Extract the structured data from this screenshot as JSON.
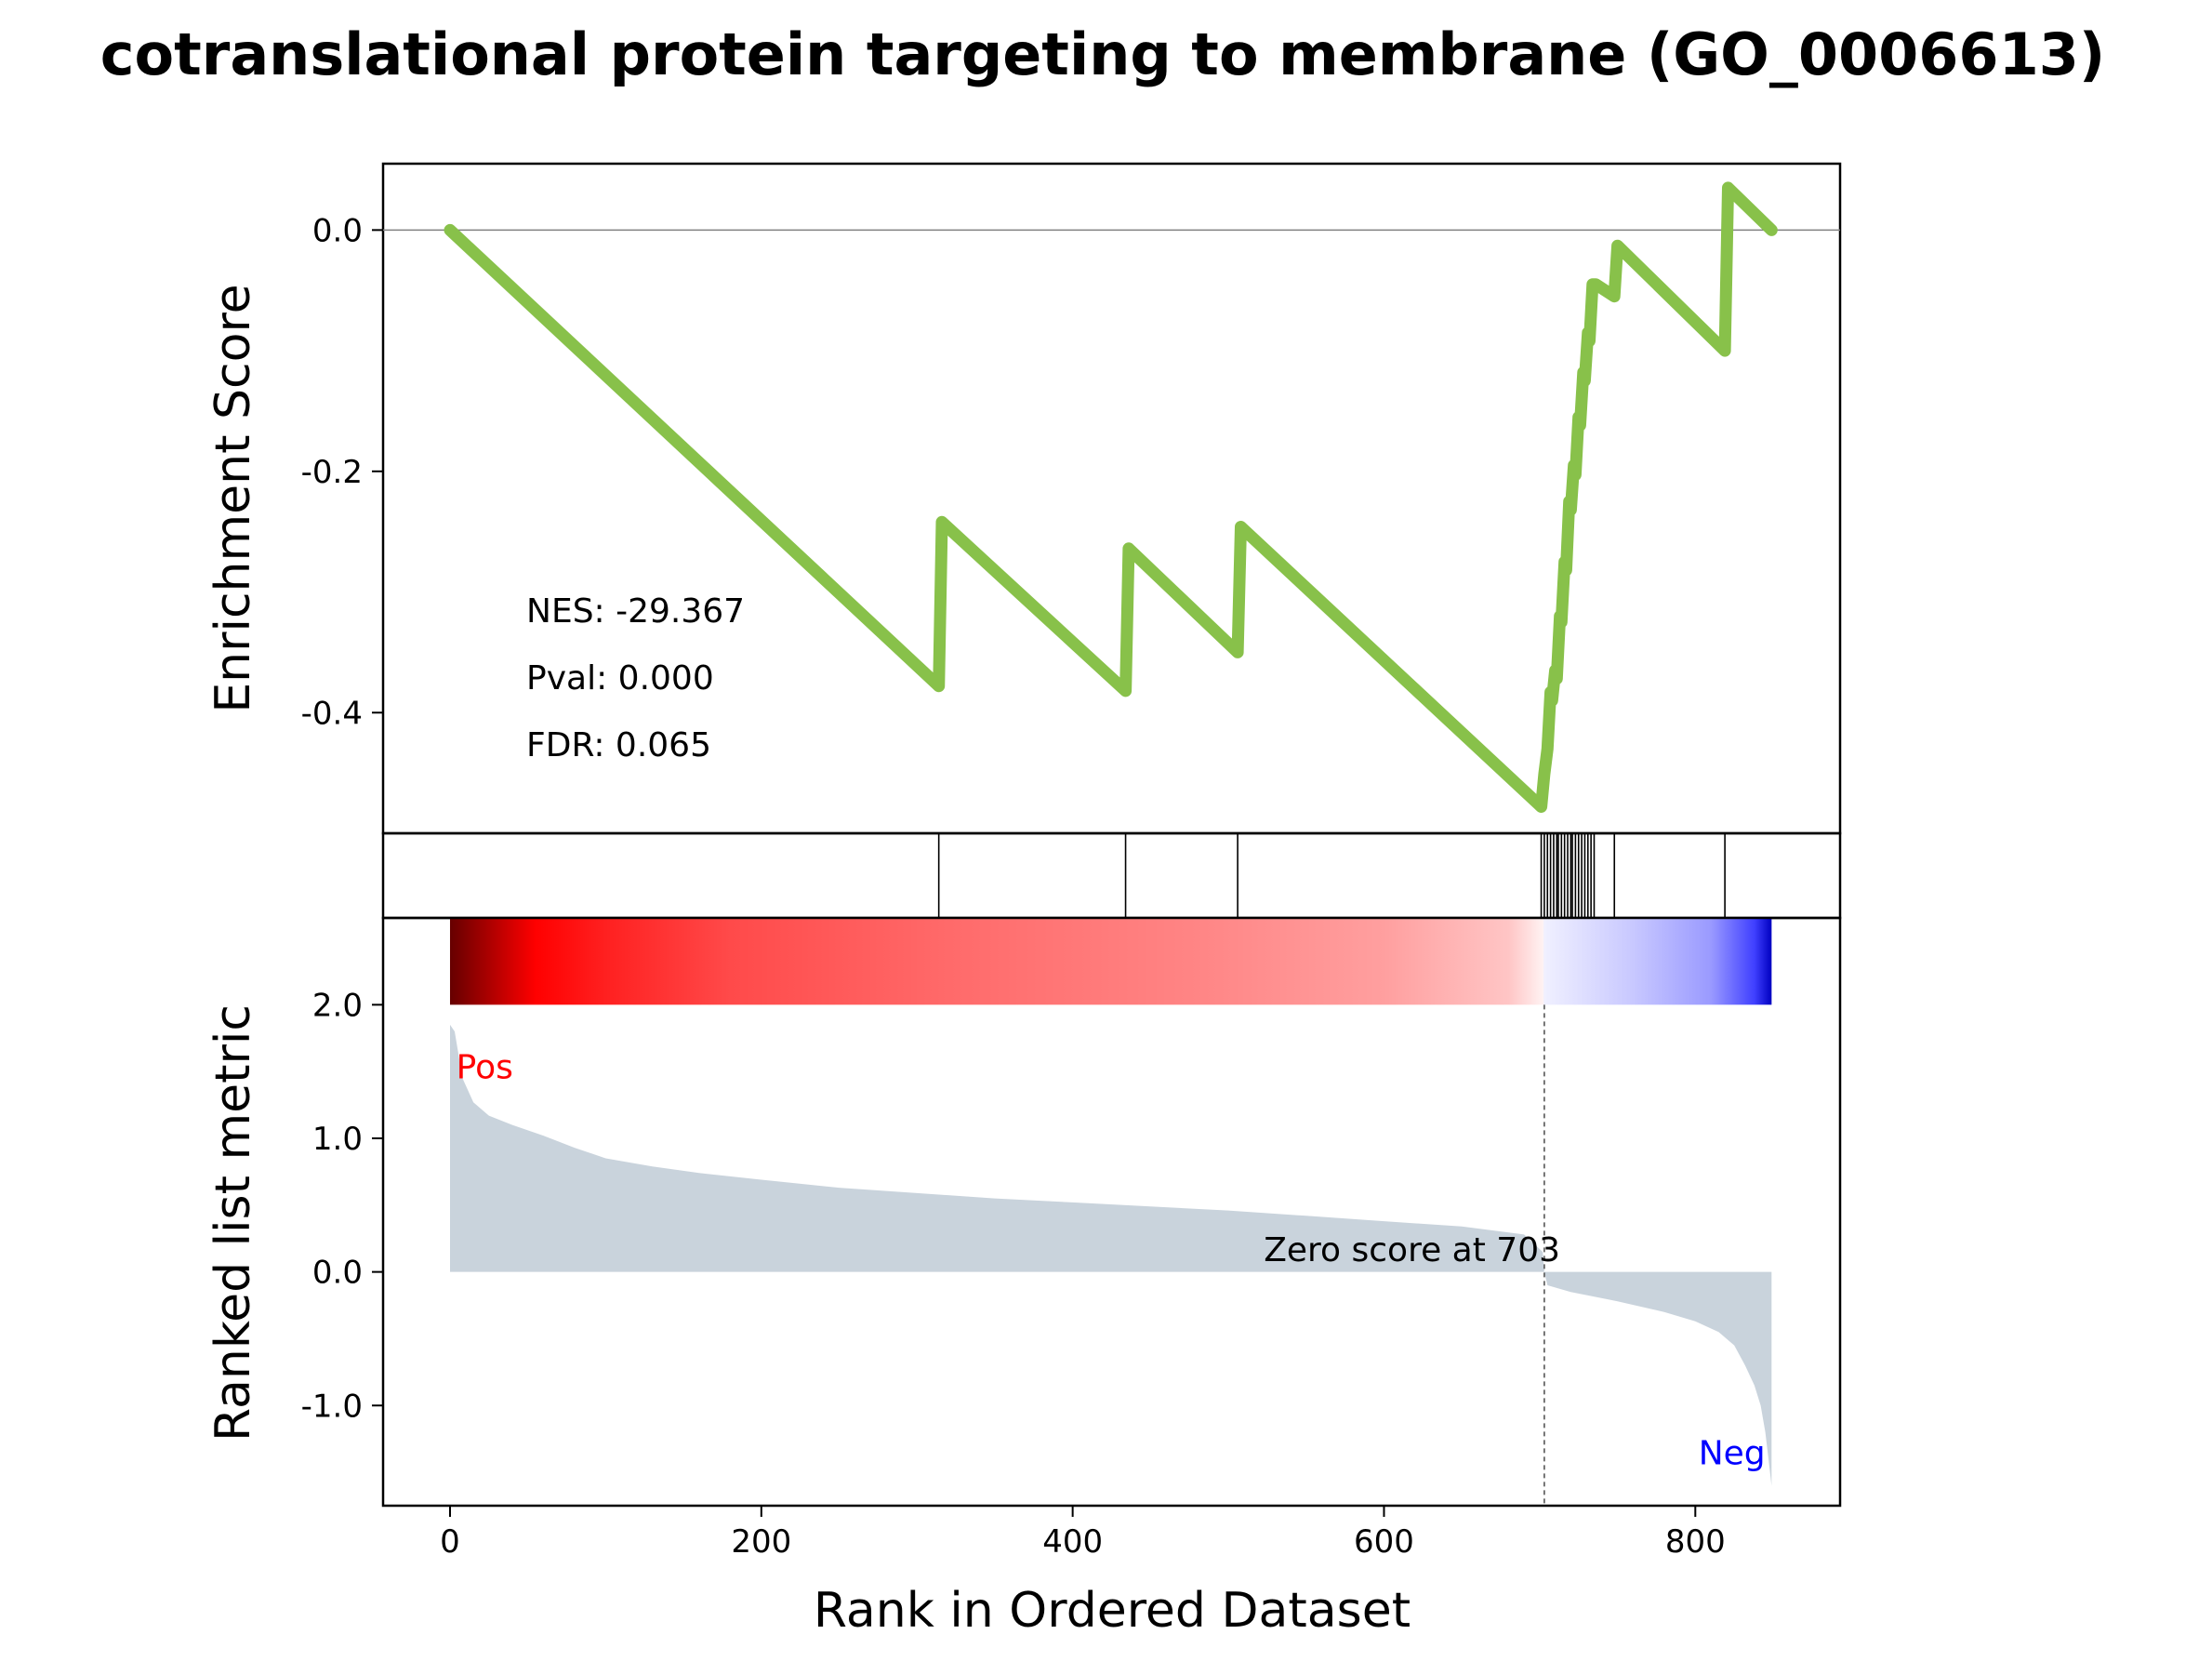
{
  "chart_data": {
    "type": "gsea_enrichment_plot",
    "title": "cotranslational protein targeting to membrane (GO_0006613)",
    "xlabel": "Rank in Ordered Dataset",
    "xlim": [
      -43,
      893
    ],
    "x_ticks": [
      0,
      200,
      400,
      600,
      800
    ],
    "x_tick_labels": [
      "0",
      "200",
      "400",
      "600",
      "800"
    ],
    "colors": {
      "es_line": "#88c14a",
      "metric_fill": "#c9d3dc",
      "pos_label": "#ff0000",
      "neg_label": "#0000ff",
      "baseline": "#808080",
      "zero_line": "#555555"
    },
    "enrichment_panel": {
      "ylabel": "Enrichment Score",
      "ylim": [
        -0.5,
        0.055
      ],
      "y_ticks": [
        0.0,
        -0.2,
        -0.4
      ],
      "y_tick_labels": [
        "0.0",
        "-0.2",
        "-0.4"
      ],
      "baseline_y": 0.0,
      "curve": {
        "x": [
          0,
          314,
          316,
          434,
          436,
          506,
          508,
          701,
          703,
          705,
          707,
          708,
          710,
          711,
          713,
          714,
          716,
          717,
          719,
          720,
          722,
          723,
          725,
          726,
          728,
          729,
          731,
          732,
          734,
          736,
          748,
          750,
          819,
          821,
          849
        ],
        "y": [
          0.0,
          -0.378,
          -0.242,
          -0.382,
          -0.264,
          -0.35,
          -0.246,
          -0.478,
          -0.451,
          -0.43,
          -0.383,
          -0.39,
          -0.365,
          -0.372,
          -0.32,
          -0.325,
          -0.275,
          -0.282,
          -0.225,
          -0.232,
          -0.195,
          -0.203,
          -0.155,
          -0.162,
          -0.118,
          -0.125,
          -0.085,
          -0.092,
          -0.045,
          -0.045,
          -0.055,
          -0.013,
          -0.1,
          0.035,
          0.0
        ]
      },
      "stats": [
        "NES: -29.367",
        "Pval: 0.000",
        "FDR: 0.065"
      ],
      "stats_anchor": {
        "x": 49,
        "y": -0.325
      }
    },
    "hits_panel": {
      "hit_positions": [
        314,
        434,
        506,
        701,
        703,
        705,
        707,
        709,
        711,
        712,
        714,
        716,
        718,
        720,
        721,
        723,
        725,
        727,
        729,
        731,
        733,
        735,
        748,
        819
      ]
    },
    "metric_panel": {
      "ylabel": "Ranked list metric",
      "ylim": [
        -1.75,
        2.65
      ],
      "y_ticks": [
        2.0,
        1.0,
        0.0,
        -1.0
      ],
      "y_tick_labels": [
        "2.0",
        "1.0",
        "0.0",
        "-1.0"
      ],
      "n_genes": 850,
      "zero_score_rank": 703,
      "zero_score_label": "Zero score at 703",
      "pos_label": "Pos",
      "neg_label": "Neg",
      "metric_profile": {
        "x": [
          0,
          3,
          8,
          15,
          25,
          40,
          60,
          80,
          100,
          130,
          160,
          200,
          250,
          300,
          350,
          400,
          450,
          500,
          550,
          600,
          650,
          690,
          702,
          703,
          705,
          720,
          750,
          780,
          800,
          815,
          825,
          832,
          838,
          842,
          845,
          847,
          849
        ],
        "y": [
          1.85,
          1.8,
          1.45,
          1.27,
          1.17,
          1.1,
          1.02,
          0.93,
          0.85,
          0.79,
          0.74,
          0.69,
          0.63,
          0.59,
          0.55,
          0.52,
          0.49,
          0.46,
          0.42,
          0.38,
          0.34,
          0.28,
          0.15,
          0.0,
          -0.1,
          -0.15,
          -0.22,
          -0.3,
          -0.37,
          -0.45,
          -0.55,
          -0.7,
          -0.85,
          -1.0,
          -1.2,
          -1.4,
          -1.6
        ]
      },
      "colorbar": {
        "stops": [
          {
            "x": 0,
            "color": "#660000"
          },
          {
            "x": 55,
            "color": "#ff0000"
          },
          {
            "x": 100,
            "color": "#ff2020"
          },
          {
            "x": 180,
            "color": "#ff4a4a"
          },
          {
            "x": 320,
            "color": "#ff6a6a"
          },
          {
            "x": 480,
            "color": "#ff8585"
          },
          {
            "x": 600,
            "color": "#ff9f9f"
          },
          {
            "x": 680,
            "color": "#ffc5c5"
          },
          {
            "x": 702,
            "color": "#fff2f2"
          },
          {
            "x": 703,
            "color": "#f0f0ff"
          },
          {
            "x": 760,
            "color": "#c8c8ff"
          },
          {
            "x": 810,
            "color": "#9a9aff"
          },
          {
            "x": 838,
            "color": "#4040ff"
          },
          {
            "x": 849,
            "color": "#0000c0"
          }
        ]
      }
    }
  }
}
